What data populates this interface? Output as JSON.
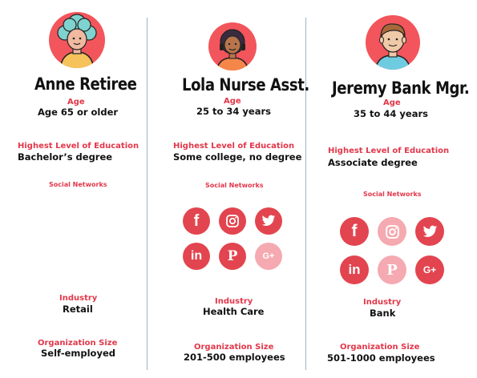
{
  "personas": [
    {
      "name": "Anne Retiree",
      "age_label": "Age",
      "age_value": "Age 65 or older",
      "education_label": "Highest Level of Education",
      "education_value": "Bachelor’s degree",
      "social_label": "Social Networks",
      "social_networks": [],
      "industry_label": "Industry",
      "industry_value": "Retail",
      "org_size_label": "Organization Size",
      "org_size_value": "Self-employed"
    },
    {
      "name": "Lola Nurse Asst.",
      "age_label": "Age",
      "age_value": "25 to 34 years",
      "education_label": "Highest Level of Education",
      "education_value": "Some college, no degree",
      "social_label": "Social Networks",
      "social_networks": [
        {
          "icon": "facebook-icon",
          "active": true
        },
        {
          "icon": "instagram-icon",
          "active": true
        },
        {
          "icon": "twitter-icon",
          "active": true
        },
        {
          "icon": "linkedin-icon",
          "active": true
        },
        {
          "icon": "pinterest-icon",
          "active": true
        },
        {
          "icon": "google-plus-icon",
          "active": false
        }
      ],
      "industry_label": "Industry",
      "industry_value": "Health Care",
      "org_size_label": "Organization Size",
      "org_size_value": "201-500 employees"
    },
    {
      "name": "Jeremy Bank Mgr.",
      "age_label": "Age",
      "age_value": "35 to 44 years",
      "education_label": "Highest Level of Education",
      "education_value": "Associate degree",
      "social_label": "Social Networks",
      "social_networks": [
        {
          "icon": "facebook-icon",
          "active": true
        },
        {
          "icon": "instagram-icon",
          "active": false
        },
        {
          "icon": "twitter-icon",
          "active": true
        },
        {
          "icon": "linkedin-icon",
          "active": true
        },
        {
          "icon": "pinterest-icon",
          "active": false
        },
        {
          "icon": "google-plus-icon",
          "active": true
        }
      ],
      "industry_label": "Industry",
      "industry_value": "Bank",
      "org_size_label": "Organization Size",
      "org_size_value": "501-1000 employees"
    }
  ],
  "colors": {
    "accent": "#e2374a",
    "icon_active": "#e2454f",
    "icon_inactive": "#f5a9b0",
    "avatar_bg": "#f2555b",
    "divider": "#9fb3c3"
  }
}
